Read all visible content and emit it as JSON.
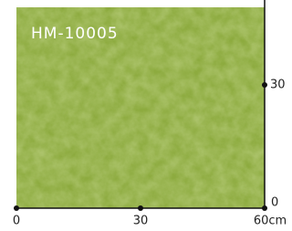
{
  "swatch": {
    "title": "HM-10005"
  },
  "scale": {
    "x_labels": [
      "0",
      "30",
      "60cm"
    ],
    "y_labels": [
      "30",
      "0"
    ]
  }
}
